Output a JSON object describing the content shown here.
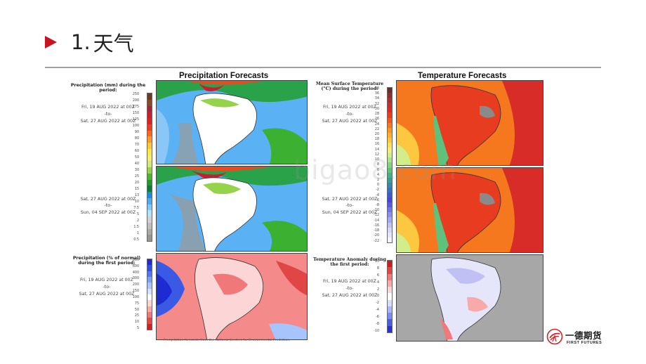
{
  "heading": {
    "number": "1.",
    "text": "天气"
  },
  "precip_panel": {
    "title": "Precipitation Forecasts",
    "amount_heading": "Precipitation (mm) during the period:",
    "period1": [
      "Fri, 19 AUG 2022 at 00Z",
      "-to-",
      "Sat, 27 AUG 2022 at 00Z"
    ],
    "period2": [
      "Sat, 27 AUG 2022 at 00Z",
      "-to-",
      "Sun, 04 SEP 2022 at 00Z"
    ],
    "normal_heading": "Precipitation (% of normal) during the first period:",
    "normal_period": [
      "Fri, 19 AUG 2022 at 00Z",
      "-to-",
      "Sat, 27 AUG 2022 at 00Z"
    ],
    "amount_scale": [
      "250",
      "200",
      "175",
      "150",
      "125",
      "100",
      "90",
      "80",
      "70",
      "60",
      "50",
      "40",
      "30",
      "25",
      "20",
      "15",
      "13",
      "10",
      "7.5",
      "5",
      "2",
      "1.5",
      "1",
      "0.5"
    ],
    "amount_colors": [
      "#6e3a22",
      "#8c4a2c",
      "#a6253a",
      "#c81e32",
      "#e01e24",
      "#f03c1e",
      "#ff6420",
      "#ff9a2a",
      "#ffc83a",
      "#ffe84a",
      "#f0f070",
      "#d2e87a",
      "#96d24a",
      "#50b432",
      "#239b28",
      "#0a7d3c",
      "#1e8cd2",
      "#50aaf0",
      "#82c8f8",
      "#b4e1fa",
      "#d2d2d2",
      "#bebebe",
      "#aaaaaa",
      "#969696"
    ],
    "normal_scale": [
      "800",
      "600",
      "400",
      "300",
      "200",
      "150",
      "100",
      "75",
      "50",
      "25",
      "10",
      "5"
    ],
    "normal_colors": [
      "#1e2ad2",
      "#3250e6",
      "#5078f0",
      "#7aa0f8",
      "#a8c4fc",
      "#d6e2fe",
      "#ffffff",
      "#fcd6d6",
      "#f8a8a8",
      "#f07878",
      "#e64848",
      "#d22020"
    ],
    "footnote": "Precipitation forecasts from the National Centers for Environmental Prediction."
  },
  "temp_panel": {
    "title": "Temperature Forecasts",
    "mean_heading": "Mean Surface Temperature (°C) during the period:",
    "period1": [
      "Fri, 19 AUG 2022 at 00Z",
      "-to-",
      "Sat, 27 AUG 2022 at 00Z"
    ],
    "period2": [
      "Sat, 27 AUG 2022 at 00Z",
      "-to-",
      "Sun, 04 SEP 2022 at 00Z"
    ],
    "anomaly_heading": "Temperature Anomaly during the first period:",
    "anomaly_period": [
      "Fri, 19 AUG 2022 at 00Z",
      "-to-",
      "Sat, 27 AUG 2022 at 00Z"
    ],
    "mean_scale": [
      "38",
      "36",
      "34",
      "32",
      "30",
      "28",
      "26",
      "24",
      "22",
      "20",
      "18",
      "16",
      "14",
      "12",
      "10",
      "8",
      "6",
      "4",
      "2",
      "0",
      "-2",
      "-4",
      "-6",
      "-8",
      "-10",
      "-12",
      "-14",
      "-16",
      "-18",
      "-20",
      "-22"
    ],
    "mean_colors": [
      "#6e2a2a",
      "#8a2f2f",
      "#a53232",
      "#bf3030",
      "#d82c28",
      "#e83c20",
      "#f05a1e",
      "#f5781e",
      "#f99622",
      "#fcb02e",
      "#fdc840",
      "#fde05a",
      "#f0f078",
      "#d2ee8a",
      "#aae28c",
      "#82d282",
      "#5ec27c",
      "#46b082",
      "#3a9c96",
      "#3a86aa",
      "#3a70c0",
      "#3c5ad2",
      "#4646dc",
      "#5a5ae0",
      "#7474e6",
      "#8e8eec",
      "#a8a8f0",
      "#c0c0f4",
      "#d6d6f8",
      "#e6e6fa",
      "#f4f4fc"
    ],
    "anomaly_scale": [
      "10",
      "8",
      "6",
      "4",
      "2",
      "0",
      "-2",
      "-4",
      "-6",
      "-8",
      "-10"
    ],
    "anomaly_colors": [
      "#c81e1e",
      "#e04646",
      "#f07a7a",
      "#f8aaaa",
      "#fcd6d6",
      "#ffffff",
      "#d6dcfc",
      "#aab6f8",
      "#7a8cf0",
      "#4a5ee0",
      "#2a32c8"
    ]
  },
  "watermark": "bigao8.com",
  "brand": {
    "name": "一德期货",
    "subtitle": "FIRST FUTURES"
  }
}
